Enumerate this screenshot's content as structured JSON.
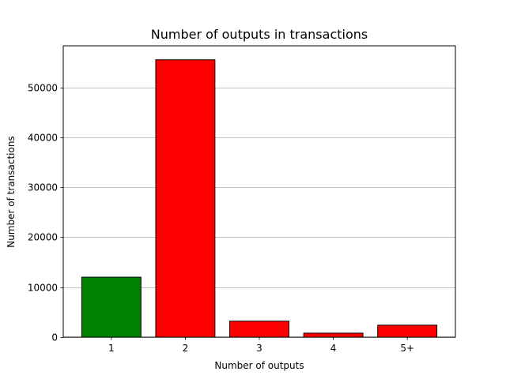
{
  "chart_data": {
    "type": "bar",
    "title": "Number of outputs in transactions",
    "xlabel": "Number of outputs",
    "ylabel": "Number of transactions",
    "categories": [
      "1",
      "2",
      "3",
      "4",
      "5+"
    ],
    "values": [
      12000,
      55500,
      3200,
      800,
      2400
    ],
    "bar_colors": [
      "#008000",
      "#ff0000",
      "#ff0000",
      "#ff0000",
      "#ff0000"
    ],
    "edge_color": "#000000",
    "ylim": [
      0,
      58300
    ],
    "yticks": [
      0,
      10000,
      20000,
      30000,
      40000,
      50000
    ],
    "grid": "y-major",
    "grid_color": "#b0b0b0",
    "legend": "none"
  }
}
